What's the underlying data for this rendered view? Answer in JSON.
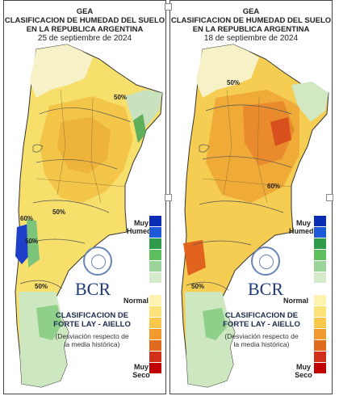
{
  "panels": [
    {
      "title_lines": [
        "GEA",
        "CLASIFICACION DE HUMEDAD DEL SUELO",
        "EN LA REPUBLICA ARGENTINA"
      ],
      "date": "25 de septiembre de 2024",
      "contour_labels": [
        "50%",
        "50%",
        "50%",
        "50%",
        "60%"
      ]
    },
    {
      "title_lines": [
        "GEA",
        "CLASIFICACION DE HUMEDAD DEL SUELO",
        "EN LA REPUBLICA ARGENTINA"
      ],
      "date": "18 de septiembre de 2024",
      "contour_labels": [
        "50%",
        "50%",
        "60%"
      ]
    }
  ],
  "legend": {
    "top": [
      "Muy",
      "Humedo"
    ],
    "normal": "Normal",
    "bottom": [
      "Muy",
      "Seco"
    ],
    "logo": "BCR",
    "classification": [
      "CLASIFICACION DE",
      "FORTE LAY - AIELLO"
    ],
    "note": [
      "(Desviación respecto de",
      "la media histórica)"
    ]
  },
  "scale_colors": [
    "#0a2db4",
    "#1e5ad8",
    "#2f9a4a",
    "#5fbf5c",
    "#9ad49a",
    "#d4eacb",
    "#ffffff",
    "#fff2b0",
    "#fde27a",
    "#fac94b",
    "#f19a2d",
    "#e06a1e",
    "#d0301a",
    "#c00000"
  ]
}
